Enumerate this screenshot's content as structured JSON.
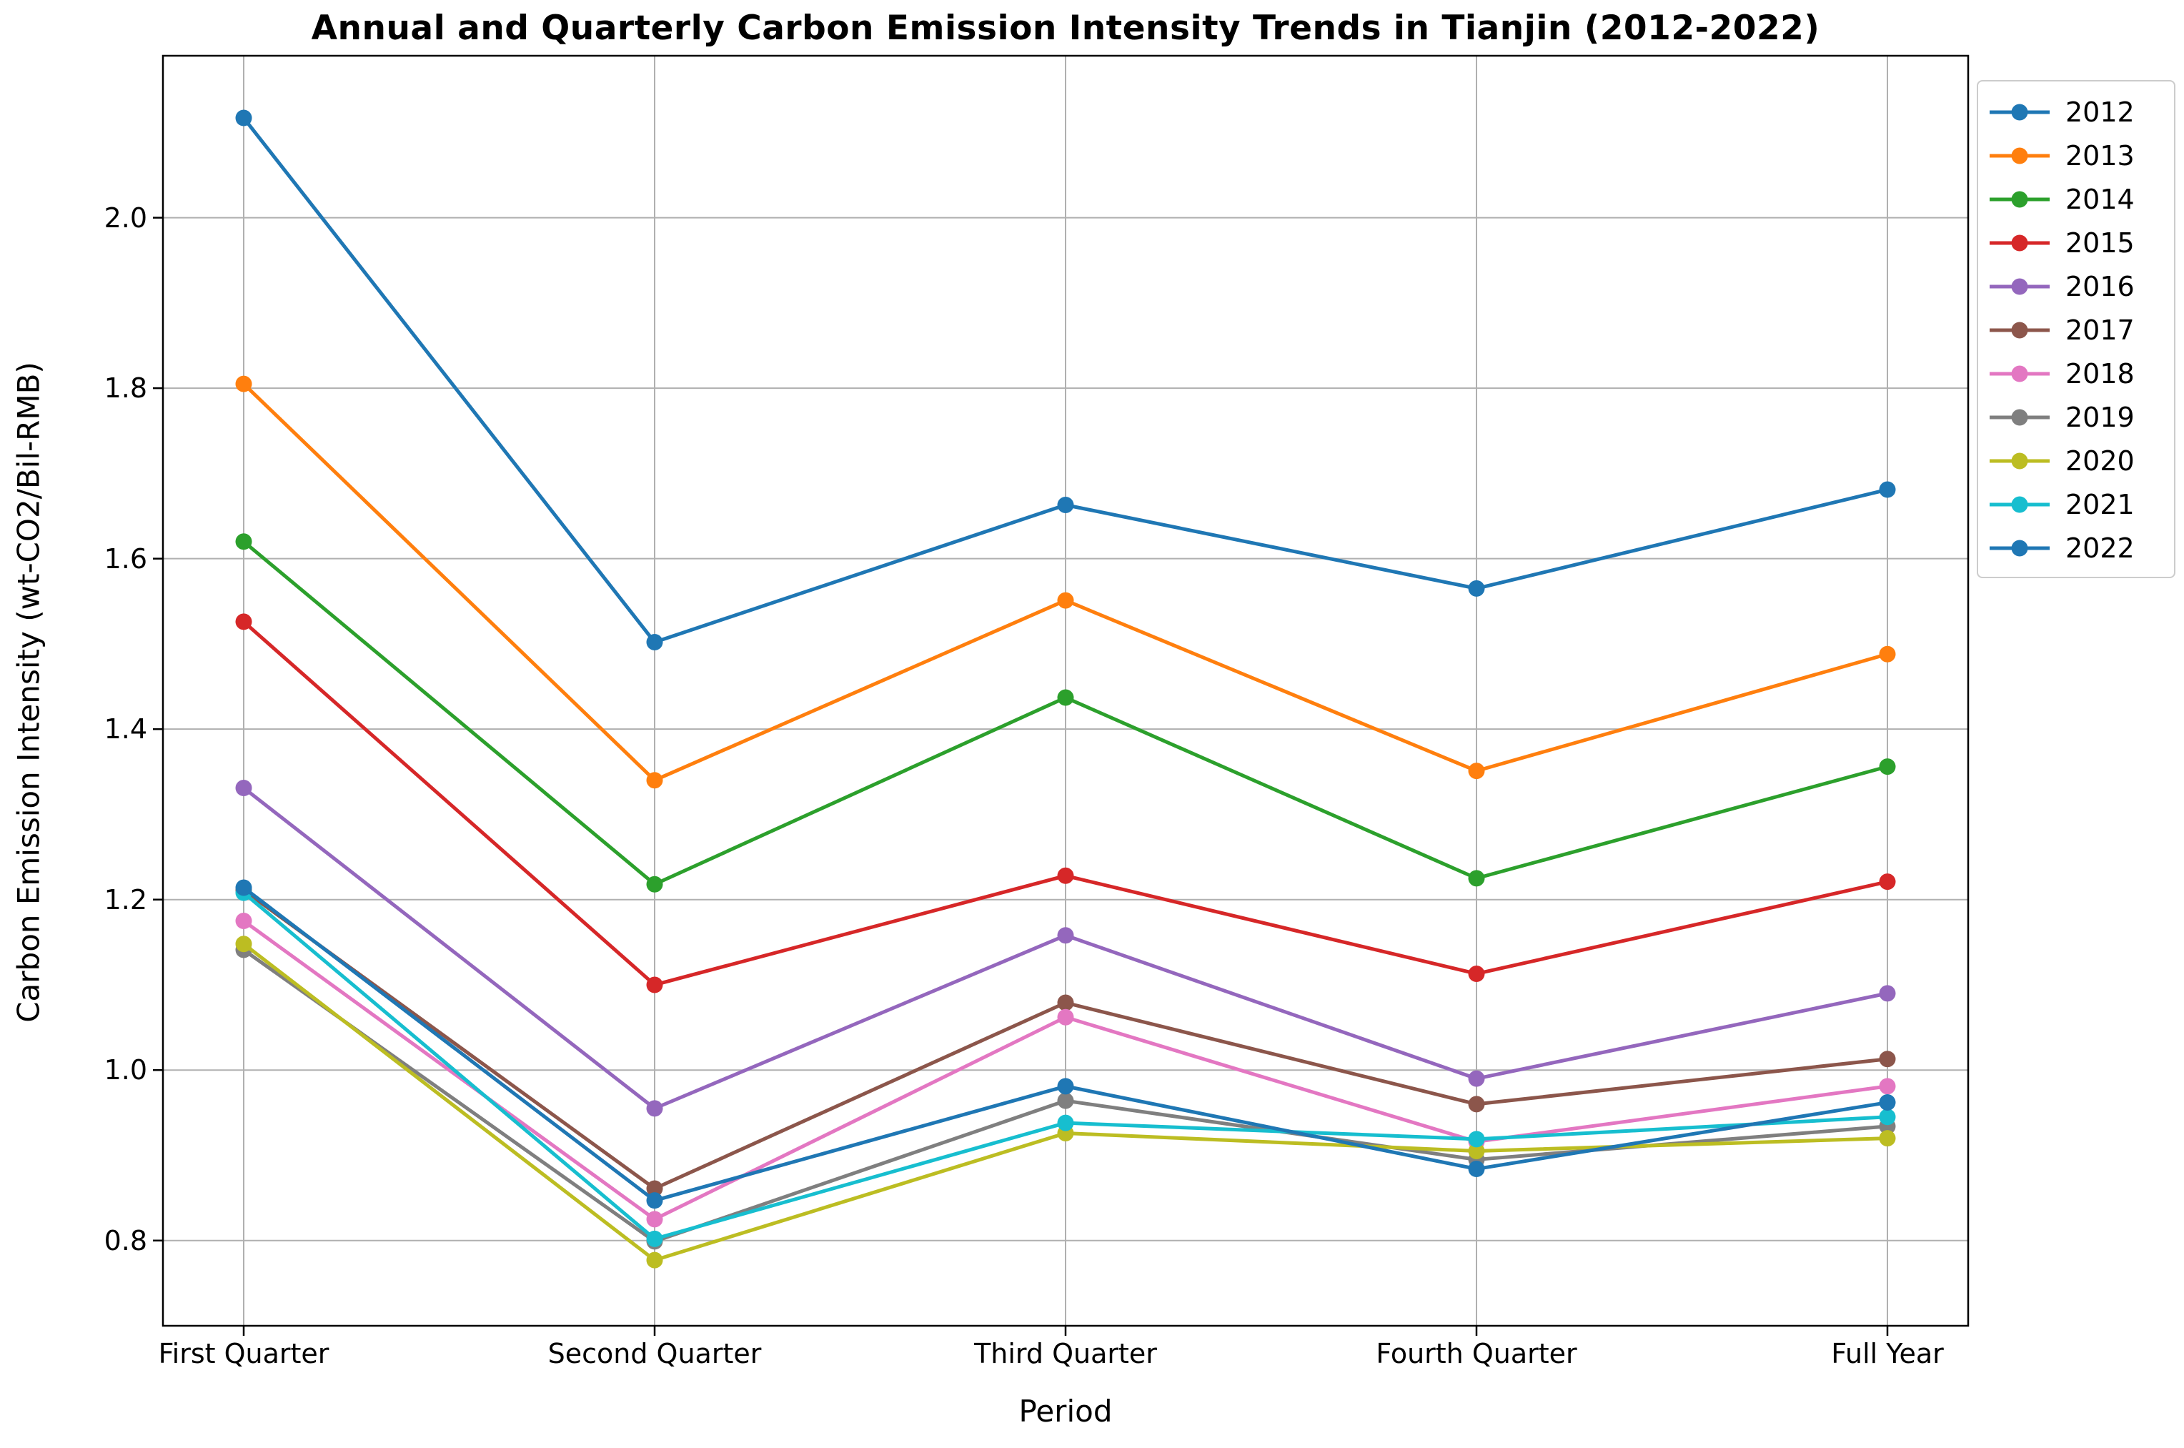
{
  "chart": {
    "title": "Annual and Quarterly Carbon Emission Intensity Trends in Tianjin (2012-2022)",
    "xlabel": "Period",
    "ylabel": "Carbon Emission Intensity (wt-CO2/Bil-RMB)"
  },
  "chart_data": {
    "type": "line",
    "title": "Annual and Quarterly Carbon Emission Intensity Trends in Tianjin (2012-2022)",
    "xlabel": "Period",
    "ylabel": "Carbon Emission Intensity (wt-CO2/Bil-RMB)",
    "categories": [
      "First Quarter",
      "Second Quarter",
      "Third Quarter",
      "Fourth Quarter",
      "Full Year"
    ],
    "y_tick_labels": [
      "0.8",
      "1.0",
      "1.2",
      "1.4",
      "1.6",
      "1.8",
      "2.0"
    ],
    "y_ticks": [
      0.8,
      1.0,
      1.2,
      1.4,
      1.6,
      1.8,
      2.0
    ],
    "ylim": [
      0.7,
      2.19
    ],
    "grid": true,
    "legend_position": "outside-upper-right",
    "marker": "circle",
    "series": [
      {
        "name": "2012",
        "color": "#1f77b4",
        "values": [
          2.117,
          1.502,
          1.663,
          1.565,
          1.681
        ]
      },
      {
        "name": "2013",
        "color": "#ff7f0e",
        "values": [
          1.805,
          1.34,
          1.551,
          1.351,
          1.488
        ]
      },
      {
        "name": "2014",
        "color": "#2ca02c",
        "values": [
          1.62,
          1.218,
          1.437,
          1.225,
          1.356
        ]
      },
      {
        "name": "2015",
        "color": "#d62728",
        "values": [
          1.526,
          1.1,
          1.228,
          1.113,
          1.221
        ]
      },
      {
        "name": "2016",
        "color": "#9467bd",
        "values": [
          1.331,
          0.955,
          1.158,
          0.99,
          1.09
        ]
      },
      {
        "name": "2017",
        "color": "#8c564b",
        "values": [
          1.211,
          0.861,
          1.079,
          0.96,
          1.013
        ]
      },
      {
        "name": "2018",
        "color": "#e377c2",
        "values": [
          1.175,
          0.825,
          1.062,
          0.916,
          0.981
        ]
      },
      {
        "name": "2019",
        "color": "#7f7f7f",
        "values": [
          1.141,
          0.799,
          0.964,
          0.895,
          0.934
        ]
      },
      {
        "name": "2020",
        "color": "#bcbd22",
        "values": [
          1.148,
          0.777,
          0.926,
          0.905,
          0.92
        ]
      },
      {
        "name": "2021",
        "color": "#17becf",
        "values": [
          1.208,
          0.802,
          0.938,
          0.919,
          0.945
        ]
      },
      {
        "name": "2022",
        "color": "#1f77b4",
        "values": [
          1.214,
          0.847,
          0.981,
          0.884,
          0.962
        ]
      }
    ],
    "style": {
      "grid_color": "#b0b0b0",
      "spine_color": "#000000",
      "legend_border_color": "#cccccc"
    }
  }
}
